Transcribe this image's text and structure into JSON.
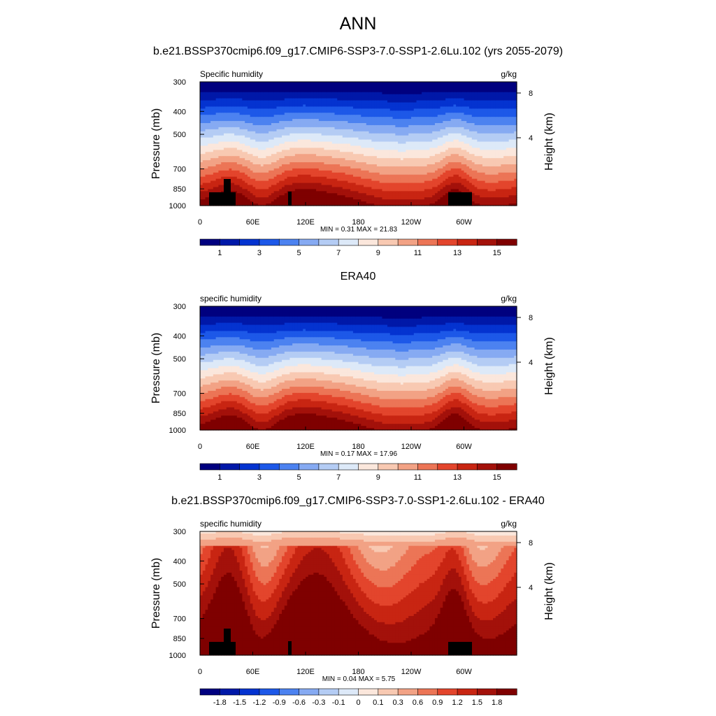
{
  "figure": {
    "main_title": "ANN",
    "experiment_title": "b.e21.BSSP370cmip6.f09_g17.CMIP6-SSP3-7.0-SSP1-2.6Lu.102 (yrs 2055-2079)",
    "colors": {
      "full_palette": [
        "#00007f",
        "#0018a8",
        "#0433d0",
        "#1d58e8",
        "#4c82f0",
        "#86aaf2",
        "#b4ccf4",
        "#dde9f8",
        "#fbe7dc",
        "#f8c9b2",
        "#f2a285",
        "#ec7556",
        "#e3452c",
        "#c82512",
        "#a3110a",
        "#7f0000"
      ],
      "terrain": "#000000"
    }
  },
  "chart_data": [
    {
      "type": "contour",
      "title": "",
      "left_label": "Specific humidity",
      "right_label": "g/kg",
      "ylabel": "Pressure (mb)",
      "y2label": "Height (km)",
      "yticks": [
        "300",
        "400",
        "500",
        "700",
        "850",
        "1000"
      ],
      "y2ticks": [
        "8",
        "4"
      ],
      "xticks": [
        "0",
        "60E",
        "120E",
        "180",
        "120W",
        "60W"
      ],
      "xlim": [
        0,
        360
      ],
      "ylim": [
        1000,
        300
      ],
      "stats": "MIN =   0.31  MAX =  21.83",
      "colorbar_labels": [
        "1",
        "3",
        "5",
        "7",
        "9",
        "11",
        "13",
        "15"
      ],
      "min": 0.31,
      "max": 21.83,
      "terrain": true
    },
    {
      "type": "contour",
      "title": "ERA40",
      "left_label": "specific humidity",
      "right_label": "g/kg",
      "ylabel": "Pressure (mb)",
      "y2label": "Height (km)",
      "yticks": [
        "300",
        "400",
        "500",
        "700",
        "850",
        "1000"
      ],
      "y2ticks": [
        "8",
        "4"
      ],
      "xticks": [
        "0",
        "60E",
        "120E",
        "180",
        "120W",
        "60W"
      ],
      "xlim": [
        0,
        360
      ],
      "ylim": [
        1000,
        300
      ],
      "stats": "MIN =   0.17  MAX =  17.96",
      "colorbar_labels": [
        "1",
        "3",
        "5",
        "7",
        "9",
        "11",
        "13",
        "15"
      ],
      "min": 0.17,
      "max": 17.96,
      "terrain": false
    },
    {
      "type": "contour",
      "title": "b.e21.BSSP370cmip6.f09_g17.CMIP6-SSP3-7.0-SSP1-2.6Lu.102 - ERA40",
      "left_label": "specific humidity",
      "right_label": "g/kg",
      "ylabel": "Pressure (mb)",
      "y2label": "Height (km)",
      "yticks": [
        "300",
        "400",
        "500",
        "700",
        "850",
        "1000"
      ],
      "y2ticks": [
        "8",
        "4"
      ],
      "xticks": [
        "0",
        "60E",
        "120E",
        "180",
        "120W",
        "60W"
      ],
      "xlim": [
        0,
        360
      ],
      "ylim": [
        1000,
        300
      ],
      "stats": "MIN =   0.04  MAX =   5.75",
      "colorbar_labels": [
        "-1.8",
        "-1.5",
        "-1.2",
        "-0.9",
        "-0.6",
        "-0.3",
        "-0.1",
        "0",
        "0.1",
        "0.3",
        "0.6",
        "0.9",
        "1.2",
        "1.5",
        "1.8"
      ],
      "min": 0.04,
      "max": 5.75,
      "terrain": true
    }
  ]
}
